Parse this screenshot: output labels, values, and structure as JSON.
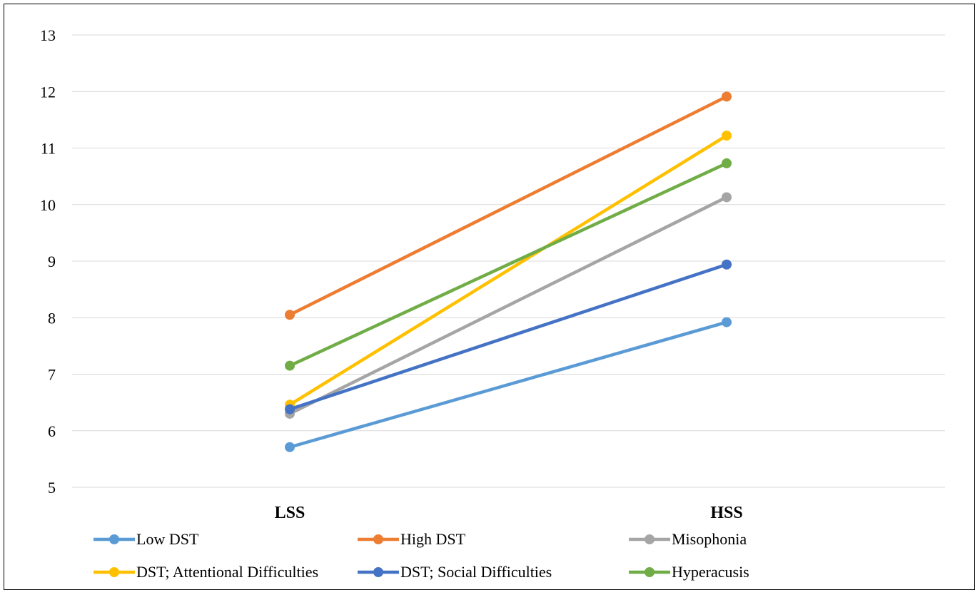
{
  "chart_data": {
    "type": "line",
    "title": "",
    "xlabel": "",
    "ylabel": "",
    "categories": [
      "LSS",
      "HSS"
    ],
    "ylim": [
      5,
      13
    ],
    "yticks": [
      5,
      6,
      7,
      8,
      9,
      10,
      11,
      12,
      13
    ],
    "grid": true,
    "legend_position": "bottom",
    "series": [
      {
        "name": "Low DST",
        "values": [
          5.71,
          7.92
        ],
        "color": "#5B9BD5"
      },
      {
        "name": "High DST",
        "values": [
          8.05,
          11.91
        ],
        "color": "#ED7D31"
      },
      {
        "name": "Misophonia",
        "values": [
          6.3,
          10.13
        ],
        "color": "#A5A5A5"
      },
      {
        "name": "DST; Attentional Difficulties",
        "values": [
          6.46,
          11.22
        ],
        "color": "#FFC000"
      },
      {
        "name": "DST; Social Difficulties",
        "values": [
          6.38,
          8.94
        ],
        "color": "#4472C4"
      },
      {
        "name": "Hyperacusis",
        "values": [
          7.15,
          10.73
        ],
        "color": "#70AD47"
      }
    ]
  }
}
